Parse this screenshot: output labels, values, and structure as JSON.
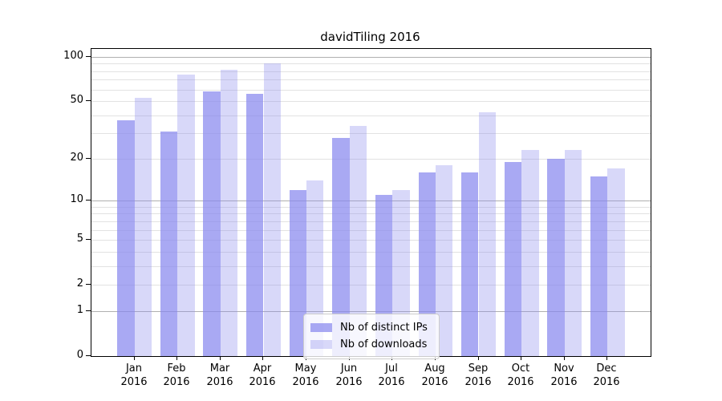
{
  "chart_data": {
    "type": "bar",
    "title": "davidTiling 2016",
    "x_year": "2016",
    "categories": [
      "Jan",
      "Feb",
      "Mar",
      "Apr",
      "May",
      "Jun",
      "Jul",
      "Aug",
      "Sep",
      "Oct",
      "Nov",
      "Dec"
    ],
    "series": [
      {
        "name": "Nb of distinct IPs",
        "color": "#8888ee",
        "alpha": 0.72,
        "values": [
          37,
          31,
          58,
          56,
          12,
          28,
          11,
          16,
          16,
          19,
          20,
          15
        ]
      },
      {
        "name": "Nb of downloads",
        "color": "#8888ee",
        "alpha": 0.33,
        "values": [
          53,
          76,
          82,
          91,
          14,
          34,
          12,
          18,
          42,
          23,
          23,
          17
        ]
      }
    ],
    "yscale": "log1p",
    "ylim": [
      0,
      113
    ],
    "yticks": [
      0,
      1,
      2,
      5,
      10,
      20,
      50,
      100
    ],
    "minor_gridlines": [
      3,
      4,
      6,
      7,
      8,
      9,
      30,
      40,
      60,
      70,
      80,
      90
    ],
    "grid": true,
    "legend_position": "lower-center",
    "colors": {
      "major_grid": "#b0b0b0",
      "minor_grid": "#e2e2e2",
      "spine": "#000000",
      "background": "#ffffff"
    }
  }
}
